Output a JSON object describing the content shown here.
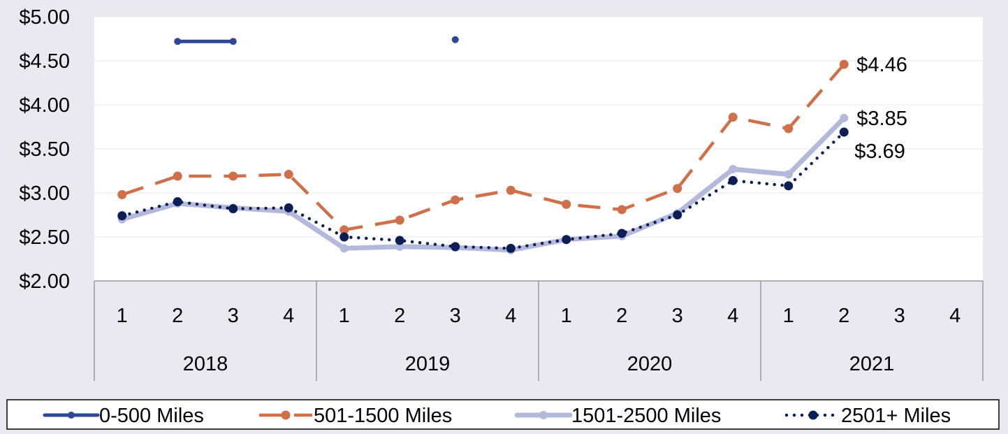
{
  "chart_data": {
    "type": "line",
    "title": "",
    "xlabel": "",
    "ylabel": "",
    "ylim": [
      2.0,
      5.0
    ],
    "y_ticks": [
      2.0,
      2.5,
      3.0,
      3.5,
      4.0,
      4.5,
      5.0
    ],
    "y_tick_labels": [
      "$2.00",
      "$2.50",
      "$3.00",
      "$3.50",
      "$4.00",
      "$4.50",
      "$5.00"
    ],
    "grid": true,
    "legend_position": "bottom",
    "year_groups": [
      {
        "label": "2018",
        "quarters": [
          "1",
          "2",
          "3",
          "4"
        ]
      },
      {
        "label": "2019",
        "quarters": [
          "1",
          "2",
          "3",
          "4"
        ]
      },
      {
        "label": "2020",
        "quarters": [
          "1",
          "2",
          "3",
          "4"
        ]
      },
      {
        "label": "2021",
        "quarters": [
          "1",
          "2",
          "3",
          "4"
        ]
      }
    ],
    "series": [
      {
        "name": "0-500 Miles",
        "color": "#2e4796",
        "style": "solid",
        "values": [
          null,
          4.72,
          4.72,
          null,
          null,
          null,
          4.74,
          null,
          null,
          null,
          null,
          null,
          null,
          null,
          null,
          null
        ]
      },
      {
        "name": "501-1500 Miles",
        "color": "#d0704a",
        "style": "dashed",
        "values": [
          2.98,
          3.19,
          3.19,
          3.21,
          2.58,
          2.69,
          2.92,
          3.03,
          2.87,
          2.81,
          3.05,
          3.86,
          3.73,
          4.46,
          null,
          null
        ],
        "end_label": "$4.46"
      },
      {
        "name": "1501-2500 Miles",
        "color": "#b4b9dc",
        "style": "thick",
        "values": [
          2.7,
          2.88,
          2.83,
          2.79,
          2.37,
          2.39,
          2.38,
          2.35,
          2.47,
          2.51,
          2.77,
          3.27,
          3.21,
          3.85,
          null,
          null
        ],
        "end_label": "$3.85"
      },
      {
        "name": "2501+ Miles",
        "color": "#0b1f56",
        "style": "dotted",
        "values": [
          2.74,
          2.9,
          2.82,
          2.83,
          2.5,
          2.46,
          2.39,
          2.37,
          2.47,
          2.54,
          2.75,
          3.14,
          3.08,
          3.69,
          null,
          null
        ],
        "end_label": "$3.69"
      }
    ]
  }
}
